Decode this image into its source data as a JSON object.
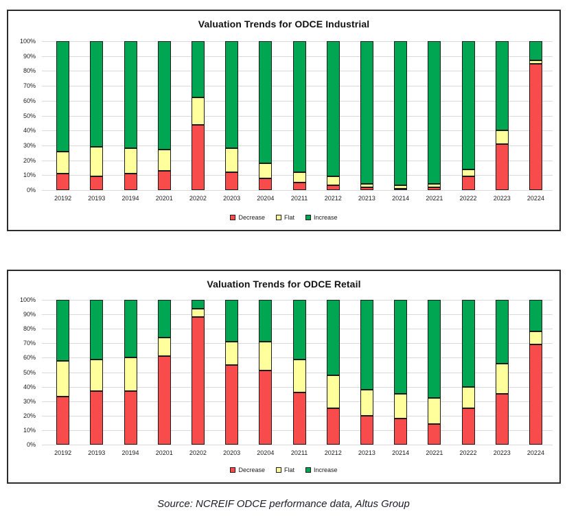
{
  "source_note": "Source: NCREIF ODCE performance data, Altus Group",
  "yticks": [
    "100%",
    "90%",
    "80%",
    "70%",
    "60%",
    "50%",
    "40%",
    "30%",
    "20%",
    "10%",
    "0%"
  ],
  "colors": {
    "decrease": "#f84c4c",
    "flat": "#ffff9c",
    "increase": "#00a651",
    "segment_border": "#1a1a1a",
    "gridline": "#d9d9d9",
    "frame_border": "#2b2b2b"
  },
  "chart_data": [
    {
      "type": "bar",
      "stacked": true,
      "title": "Valuation Trends for ODCE Industrial",
      "categories": [
        "20192",
        "20193",
        "20194",
        "20201",
        "20202",
        "20203",
        "20204",
        "20211",
        "20212",
        "20213",
        "20214",
        "20221",
        "20222",
        "20223",
        "20224"
      ],
      "series": [
        {
          "name": "Decrease",
          "color": "#f84c4c",
          "values": [
            11,
            9,
            11,
            13,
            44,
            12,
            8,
            5,
            3,
            2,
            1,
            2,
            9,
            31,
            85
          ]
        },
        {
          "name": "Flat",
          "color": "#ffff9c",
          "values": [
            15,
            20,
            17,
            14,
            18,
            16,
            10,
            7,
            6,
            2,
            2,
            2,
            5,
            9,
            2
          ]
        },
        {
          "name": "Increase",
          "color": "#00a651",
          "values": [
            74,
            71,
            72,
            73,
            38,
            72,
            82,
            88,
            91,
            96,
            97,
            96,
            86,
            60,
            13
          ]
        }
      ],
      "xlabel": "",
      "ylabel": "",
      "ylim": [
        0,
        100
      ],
      "unit": "%",
      "grid": true,
      "legend_position": "bottom"
    },
    {
      "type": "bar",
      "stacked": true,
      "title": "Valuation Trends for ODCE Retail",
      "categories": [
        "20192",
        "20193",
        "20194",
        "20201",
        "20202",
        "20203",
        "20204",
        "20211",
        "20212",
        "20213",
        "20214",
        "20221",
        "20222",
        "20223",
        "20224"
      ],
      "series": [
        {
          "name": "Decrease",
          "color": "#f84c4c",
          "values": [
            33,
            37,
            37,
            61,
            88,
            55,
            51,
            36,
            25,
            20,
            18,
            14,
            25,
            35,
            69
          ]
        },
        {
          "name": "Flat",
          "color": "#ffff9c",
          "values": [
            25,
            22,
            23,
            13,
            6,
            16,
            20,
            23,
            23,
            18,
            17,
            18,
            15,
            21,
            9
          ]
        },
        {
          "name": "Increase",
          "color": "#00a651",
          "values": [
            42,
            41,
            40,
            26,
            6,
            29,
            29,
            41,
            52,
            62,
            65,
            68,
            60,
            44,
            22
          ]
        }
      ],
      "xlabel": "",
      "ylabel": "",
      "ylim": [
        0,
        100
      ],
      "unit": "%",
      "grid": true,
      "legend_position": "bottom"
    }
  ]
}
